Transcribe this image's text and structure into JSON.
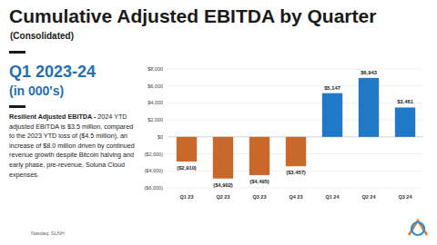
{
  "chart_data": {
    "type": "bar",
    "title": "Cumulative Adjusted EBITDA by Quarter",
    "subtitle": "(Consolidated)",
    "categories": [
      "Q1 23",
      "Q2 23",
      "Q3 23",
      "Q4 23",
      "Q1 24",
      "Q2 24",
      "Q3 24"
    ],
    "values": [
      -2910,
      -4902,
      -4495,
      -3457,
      5147,
      6943,
      3461
    ],
    "value_labels": [
      "($2,910)",
      "($4,902)",
      "($4,495)",
      "($3,457)",
      "$5,147",
      "$6,943",
      "$3,461"
    ],
    "colors": [
      "#c8682b",
      "#c8682b",
      "#c8682b",
      "#c8682b",
      "#1f78c8",
      "#1f78c8",
      "#1f78c8"
    ],
    "ylim": [
      -6000,
      8000
    ],
    "yticks": [
      {
        "value": -6000,
        "label": "($6,000)"
      },
      {
        "value": -4000,
        "label": "($4,000)"
      },
      {
        "value": -2000,
        "label": "($2,000)"
      },
      {
        "value": 0,
        "label": "$0"
      },
      {
        "value": 2000,
        "label": "$2,000"
      },
      {
        "value": 4000,
        "label": "$4,000"
      },
      {
        "value": 6000,
        "label": "$6,000"
      },
      {
        "value": 8000,
        "label": "$8,000"
      }
    ],
    "grid": true,
    "data_labels": true
  },
  "page": {
    "heading": "Q1 2023-24",
    "heading_sub": "(in 000's)",
    "body_bold": "Resilient Adjusted EBITDA -",
    "body": " 2024 YTD adjusted EBITDA is $3.5 million, compared to the 2023 YTD loss of ($4.5 million), an increase of $8.0 million driven by continued revenue growth despite Bitcoin halving and early phase, pre-revenue, Soluna Cloud expenses.",
    "footer": "Nasdaq: SLNH"
  }
}
